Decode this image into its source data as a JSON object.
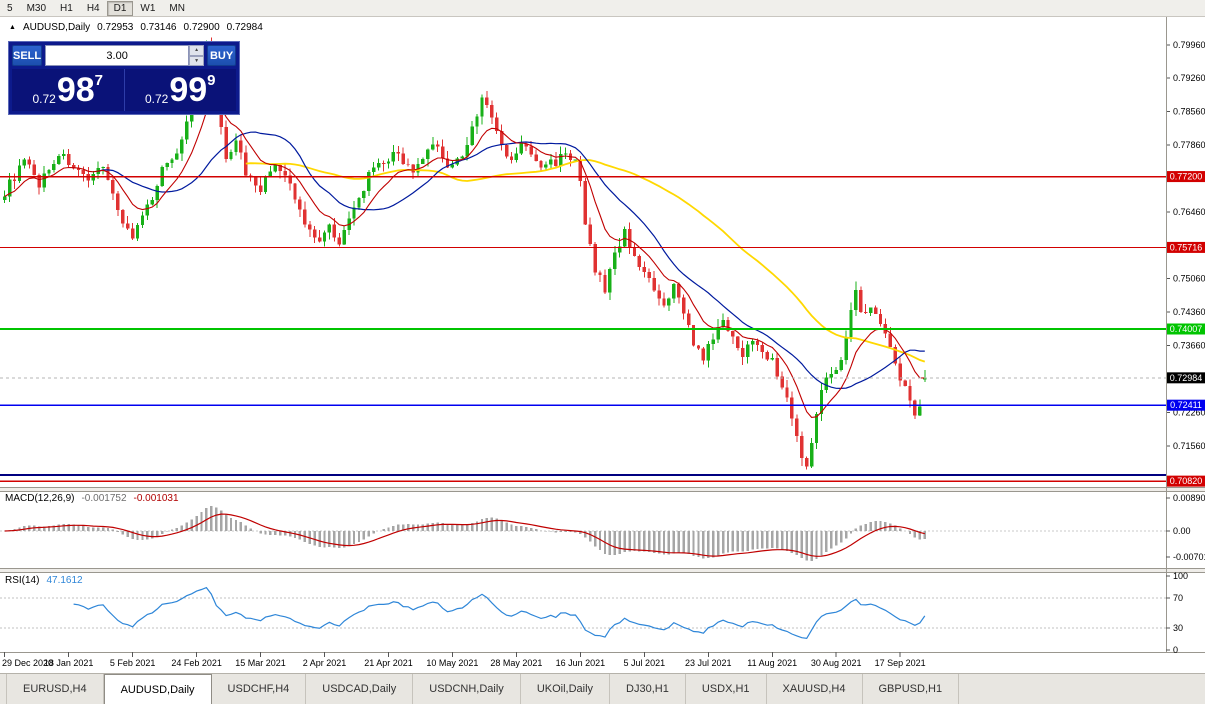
{
  "icons": {
    "chart_marker_icon": "▲",
    "spinner_up_icon": "▲",
    "spinner_down_icon": "▼"
  },
  "toolbar": {
    "timeframes": [
      {
        "label": "5",
        "active": false
      },
      {
        "label": "M30",
        "active": false
      },
      {
        "label": "H1",
        "active": false
      },
      {
        "label": "H4",
        "active": false
      },
      {
        "label": "D1",
        "active": true
      },
      {
        "label": "W1",
        "active": false
      },
      {
        "label": "MN",
        "active": false
      }
    ]
  },
  "header": {
    "symbol": "AUDUSD,Daily",
    "open": "0.72953",
    "high": "0.73146",
    "low": "0.72900",
    "close": "0.72984"
  },
  "trade_panel": {
    "sell_label": "SELL",
    "buy_label": "BUY",
    "volume": "3.00",
    "sell_price": {
      "small": "0.72",
      "big": "98",
      "sup": "7"
    },
    "buy_price": {
      "small": "0.72",
      "big": "99",
      "sup": "9"
    }
  },
  "macd": {
    "title": "MACD(12,26,9)",
    "value_main": "-0.001752",
    "value_signal": "-0.001031",
    "axis_labels": [
      {
        "value": 0.008904,
        "label": "0.008904"
      },
      {
        "value": 0,
        "label": "0.00"
      },
      {
        "value": -0.00701,
        "label": "-0.007010"
      }
    ]
  },
  "rsi": {
    "title": "RSI(14)",
    "value": "47.1612",
    "levels": [
      70,
      30
    ],
    "axis_labels": [
      {
        "value": 100,
        "label": "100"
      },
      {
        "value": 70,
        "label": "70"
      },
      {
        "value": 30,
        "label": "30"
      },
      {
        "value": 0,
        "label": "0"
      }
    ]
  },
  "tabs": [
    {
      "label": "EURUSD,H4",
      "active": false
    },
    {
      "label": "AUDUSD,Daily",
      "active": true
    },
    {
      "label": "USDCHF,H4",
      "active": false
    },
    {
      "label": "USDCAD,Daily",
      "active": false
    },
    {
      "label": "USDCNH,Daily",
      "active": false
    },
    {
      "label": "UKOil,Daily",
      "active": false
    },
    {
      "label": "DJ30,H1",
      "active": false
    },
    {
      "label": "USDX,H1",
      "active": false
    },
    {
      "label": "XAUUSD,H4",
      "active": false
    },
    {
      "label": "GBPUSD,H1",
      "active": false
    }
  ],
  "ui_colors": {
    "panel_bg": "#0d1a8c",
    "panel_price_bg": "#0a1278",
    "buy_sell_button": "#2d63cf",
    "tab_bar_bg": "#e8e6e1"
  },
  "chart_data": {
    "type": "candlestick",
    "symbol": "AUDUSD",
    "timeframe": "Daily",
    "num_bars": 188,
    "last_bar": {
      "open": 0.72953,
      "high": 0.73146,
      "low": 0.729,
      "close": 0.72984
    },
    "y_axis": {
      "min": 0.7076,
      "max": 0.8048,
      "ticks": [
        {
          "price": 0.7996,
          "label": "0.79960"
        },
        {
          "price": 0.7926,
          "label": "0.79260"
        },
        {
          "price": 0.7856,
          "label": "0.78560"
        },
        {
          "price": 0.7786,
          "label": "0.77860"
        },
        {
          "price": 0.7646,
          "label": "0.76460"
        },
        {
          "price": 0.7506,
          "label": "0.75060"
        },
        {
          "price": 0.7436,
          "label": "0.74360"
        },
        {
          "price": 0.7366,
          "label": "0.73660"
        },
        {
          "price": 0.7226,
          "label": "0.72260"
        },
        {
          "price": 0.7156,
          "label": "0.71560"
        }
      ]
    },
    "x_ticks": [
      {
        "i": 0,
        "label": "29 Dec 2020"
      },
      {
        "i": 13,
        "label": "18 Jan 2021"
      },
      {
        "i": 26,
        "label": "5 Feb 2021"
      },
      {
        "i": 39,
        "label": "24 Feb 2021"
      },
      {
        "i": 52,
        "label": "15 Mar 2021"
      },
      {
        "i": 65,
        "label": "2 Apr 2021"
      },
      {
        "i": 78,
        "label": "21 Apr 2021"
      },
      {
        "i": 91,
        "label": "10 May 2021"
      },
      {
        "i": 104,
        "label": "28 May 2021"
      },
      {
        "i": 117,
        "label": "16 Jun 2021"
      },
      {
        "i": 130,
        "label": "5 Jul 2021"
      },
      {
        "i": 143,
        "label": "23 Jul 2021"
      },
      {
        "i": 156,
        "label": "11 Aug 2021"
      },
      {
        "i": 169,
        "label": "30 Aug 2021"
      },
      {
        "i": 182,
        "label": "17 Sep 2021"
      }
    ],
    "price_lines": [
      {
        "price": 0.772,
        "label": "0.77200",
        "color": "#d20000",
        "width": 1.4
      },
      {
        "price": 0.75716,
        "label": "0.75716",
        "color": "#d20000",
        "width": 1
      },
      {
        "price": 0.74007,
        "label": "0.74007",
        "color": "#00c400",
        "width": 1.8
      },
      {
        "price": 0.72411,
        "label": "0.72411",
        "color": "#0000f0",
        "width": 1.8
      },
      {
        "price": 0.7095,
        "label": null,
        "color": "#000080",
        "width": 1.8
      },
      {
        "price": 0.7082,
        "label": "0.70820",
        "color": "#d20000",
        "width": 1.4
      }
    ],
    "current_price": {
      "price": 0.72984,
      "label": "0.72984"
    },
    "close_anchors": [
      [
        0,
        0.7688
      ],
      [
        4,
        0.7752
      ],
      [
        7,
        0.7705
      ],
      [
        11,
        0.7768
      ],
      [
        14,
        0.7742
      ],
      [
        17,
        0.7702
      ],
      [
        20,
        0.775
      ],
      [
        23,
        0.7648
      ],
      [
        26,
        0.7592
      ],
      [
        29,
        0.7652
      ],
      [
        32,
        0.7735
      ],
      [
        35,
        0.7775
      ],
      [
        37,
        0.783
      ],
      [
        39,
        0.7905
      ],
      [
        41,
        0.7992
      ],
      [
        42,
        0.796
      ],
      [
        43,
        0.7868
      ],
      [
        45,
        0.7762
      ],
      [
        47,
        0.78
      ],
      [
        49,
        0.7728
      ],
      [
        52,
        0.7696
      ],
      [
        55,
        0.7748
      ],
      [
        58,
        0.77
      ],
      [
        61,
        0.7622
      ],
      [
        64,
        0.7588
      ],
      [
        66,
        0.7618
      ],
      [
        68,
        0.7585
      ],
      [
        71,
        0.7648
      ],
      [
        74,
        0.7722
      ],
      [
        77,
        0.7748
      ],
      [
        80,
        0.7772
      ],
      [
        83,
        0.7722
      ],
      [
        85,
        0.7758
      ],
      [
        88,
        0.779
      ],
      [
        90,
        0.7738
      ],
      [
        93,
        0.7762
      ],
      [
        95,
        0.7822
      ],
      [
        97,
        0.7885
      ],
      [
        99,
        0.7842
      ],
      [
        101,
        0.7782
      ],
      [
        103,
        0.7748
      ],
      [
        105,
        0.7792
      ],
      [
        107,
        0.7762
      ],
      [
        109,
        0.7742
      ],
      [
        112,
        0.7752
      ],
      [
        114,
        0.7772
      ],
      [
        116,
        0.7748
      ],
      [
        117,
        0.7705
      ],
      [
        118,
        0.7615
      ],
      [
        120,
        0.7528
      ],
      [
        122,
        0.7482
      ],
      [
        124,
        0.7562
      ],
      [
        126,
        0.7602
      ],
      [
        128,
        0.7558
      ],
      [
        130,
        0.7518
      ],
      [
        132,
        0.7478
      ],
      [
        134,
        0.7442
      ],
      [
        136,
        0.7488
      ],
      [
        138,
        0.7442
      ],
      [
        140,
        0.7372
      ],
      [
        142,
        0.7332
      ],
      [
        144,
        0.7388
      ],
      [
        146,
        0.7412
      ],
      [
        148,
        0.7392
      ],
      [
        150,
        0.7342
      ],
      [
        152,
        0.7382
      ],
      [
        154,
        0.7362
      ],
      [
        156,
        0.7332
      ],
      [
        158,
        0.7282
      ],
      [
        160,
        0.7222
      ],
      [
        162,
        0.7132
      ],
      [
        163,
        0.7108
      ],
      [
        164,
        0.7162
      ],
      [
        165,
        0.7232
      ],
      [
        166,
        0.7282
      ],
      [
        168,
        0.7302
      ],
      [
        170,
        0.7342
      ],
      [
        172,
        0.7442
      ],
      [
        173,
        0.7478
      ],
      [
        174,
        0.7432
      ],
      [
        176,
        0.7442
      ],
      [
        178,
        0.7412
      ],
      [
        180,
        0.7372
      ],
      [
        182,
        0.7302
      ],
      [
        184,
        0.7252
      ],
      [
        185,
        0.7228
      ],
      [
        186,
        0.7242
      ],
      [
        187,
        0.72984
      ]
    ],
    "noise_amplitude": 0.001,
    "moving_averages": [
      {
        "period": 10,
        "type": "ema",
        "color": "#c00000"
      },
      {
        "period": 20,
        "type": "sma",
        "color": "#001a9e"
      },
      {
        "period": 50,
        "type": "sma",
        "color": "#ffd800"
      }
    ],
    "indicators": [
      {
        "name": "MACD",
        "params": [
          12,
          26,
          9
        ]
      },
      {
        "name": "RSI",
        "params": [
          14
        ]
      }
    ],
    "colors": {
      "up": "#18b018",
      "down": "#e03232",
      "macd_histogram": "#a6a6a6",
      "macd_signal": "#c00000",
      "rsi_line": "#2e86d8"
    }
  }
}
